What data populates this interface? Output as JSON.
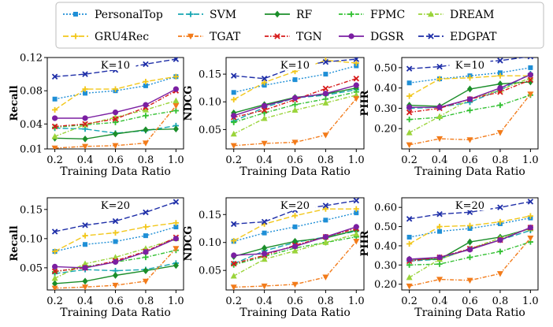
{
  "legend": [
    {
      "name": "PersonalTop",
      "color": "#1f8fd6",
      "dash": "2,2",
      "marker": "square"
    },
    {
      "name": "SVM",
      "color": "#17a6b3",
      "dash": "7,3",
      "marker": "plus"
    },
    {
      "name": "RF",
      "color": "#1b8e2a",
      "dash": "",
      "marker": "diamond"
    },
    {
      "name": "FPMC",
      "color": "#32c032",
      "dash": "5,2,1.5,2",
      "marker": "plus"
    },
    {
      "name": "DREAM",
      "color": "#9ad43a",
      "dash": "5,2,1.5,2",
      "marker": "triangle-up"
    },
    {
      "name": "GRU4Rec",
      "color": "#f2c71b",
      "dash": "7,3",
      "marker": "plus"
    },
    {
      "name": "TGAT",
      "color": "#f27b1a",
      "dash": "5,2,1.5,2",
      "marker": "triangle-down"
    },
    {
      "name": "TGN",
      "color": "#d61a1a",
      "dash": "5,2,1.5,2",
      "marker": "x"
    },
    {
      "name": "DGSR",
      "color": "#7b1fa2",
      "dash": "",
      "marker": "circle"
    },
    {
      "name": "EDGPAT",
      "color": "#1f2fa8",
      "dash": "7,3",
      "marker": "x"
    }
  ],
  "chart_data": [
    {
      "type": "line",
      "title": "K=10",
      "xlabel": "Training Data Ratio",
      "ylabel": "Recall",
      "x": [
        0.2,
        0.4,
        0.6,
        0.8,
        1.0
      ],
      "ylim": [
        0.01,
        0.12
      ],
      "yticks": [
        "0.01",
        "0.04",
        "0.08",
        "0.12"
      ],
      "series": [
        {
          "name": "PersonalTop",
          "values": [
            0.07,
            0.077,
            0.08,
            0.086,
            0.097
          ]
        },
        {
          "name": "SVM",
          "values": [
            0.035,
            0.034,
            0.029,
            0.032,
            0.038
          ]
        },
        {
          "name": "RF",
          "values": [
            0.023,
            0.022,
            0.028,
            0.033,
            0.034
          ]
        },
        {
          "name": "FPMC",
          "values": [
            0.036,
            0.039,
            0.042,
            0.05,
            0.056
          ]
        },
        {
          "name": "DREAM",
          "values": [
            0.025,
            0.039,
            0.048,
            0.057,
            0.068
          ]
        },
        {
          "name": "GRU4Rec",
          "values": [
            0.057,
            0.082,
            0.082,
            0.091,
            0.097
          ]
        },
        {
          "name": "TGAT",
          "values": [
            0.011,
            0.013,
            0.014,
            0.017,
            0.062
          ]
        },
        {
          "name": "TGN",
          "values": [
            0.037,
            0.04,
            0.046,
            0.06,
            0.08
          ]
        },
        {
          "name": "DGSR",
          "values": [
            0.047,
            0.047,
            0.054,
            0.063,
            0.082
          ]
        },
        {
          "name": "EDGPAT",
          "values": [
            0.097,
            0.1,
            0.105,
            0.112,
            0.118
          ]
        }
      ]
    },
    {
      "type": "line",
      "title": "K=10",
      "xlabel": "Training Data Ratio",
      "ylabel": "NDCG",
      "x": [
        0.2,
        0.4,
        0.6,
        0.8,
        1.0
      ],
      "ylim": [
        0.015,
        0.18
      ],
      "yticks": [
        "0.05",
        "0.10",
        "0.15"
      ],
      "series": [
        {
          "name": "PersonalTop",
          "values": [
            0.117,
            0.13,
            0.14,
            0.15,
            0.165
          ]
        },
        {
          "name": "SVM",
          "values": [
            0.065,
            0.09,
            0.107,
            0.112,
            0.122
          ]
        },
        {
          "name": "RF",
          "values": [
            0.08,
            0.095,
            0.108,
            0.114,
            0.125
          ]
        },
        {
          "name": "FPMC",
          "values": [
            0.063,
            0.08,
            0.095,
            0.105,
            0.118
          ]
        },
        {
          "name": "DREAM",
          "values": [
            0.042,
            0.07,
            0.085,
            0.098,
            0.112
          ]
        },
        {
          "name": "GRU4Rec",
          "values": [
            0.104,
            0.135,
            0.155,
            0.175,
            0.17
          ]
        },
        {
          "name": "TGAT",
          "values": [
            0.021,
            0.025,
            0.027,
            0.04,
            0.106
          ]
        },
        {
          "name": "TGN",
          "values": [
            0.072,
            0.085,
            0.104,
            0.124,
            0.142
          ]
        },
        {
          "name": "DGSR",
          "values": [
            0.075,
            0.093,
            0.107,
            0.115,
            0.13
          ]
        },
        {
          "name": "EDGPAT",
          "values": [
            0.147,
            0.142,
            0.163,
            0.172,
            0.177
          ]
        }
      ]
    },
    {
      "type": "line",
      "title": "K=10",
      "xlabel": "Training Data Ratio",
      "ylabel": "PHR",
      "x": [
        0.2,
        0.4,
        0.6,
        0.8,
        1.0
      ],
      "ylim": [
        0.1,
        0.55
      ],
      "yticks": [
        "0.20",
        "0.30",
        "0.40",
        "0.50"
      ],
      "series": [
        {
          "name": "PersonalTop",
          "values": [
            0.425,
            0.445,
            0.46,
            0.475,
            0.5
          ]
        },
        {
          "name": "SVM",
          "values": [
            0.3,
            0.305,
            0.33,
            0.39,
            0.47
          ]
        },
        {
          "name": "RF",
          "values": [
            0.315,
            0.31,
            0.395,
            0.42,
            0.43
          ]
        },
        {
          "name": "FPMC",
          "values": [
            0.245,
            0.255,
            0.29,
            0.315,
            0.365
          ]
        },
        {
          "name": "DREAM",
          "values": [
            0.18,
            0.26,
            0.345,
            0.39,
            0.45
          ]
        },
        {
          "name": "GRU4Rec",
          "values": [
            0.36,
            0.445,
            0.45,
            0.46,
            0.46
          ]
        },
        {
          "name": "TGAT",
          "values": [
            0.12,
            0.15,
            0.145,
            0.18,
            0.37
          ]
        },
        {
          "name": "TGN",
          "values": [
            0.28,
            0.3,
            0.345,
            0.38,
            0.44
          ]
        },
        {
          "name": "DGSR",
          "values": [
            0.305,
            0.305,
            0.345,
            0.4,
            0.465
          ]
        },
        {
          "name": "EDGPAT",
          "values": [
            0.495,
            0.505,
            0.525,
            0.535,
            0.555
          ]
        }
      ]
    },
    {
      "type": "line",
      "title": "K=20",
      "xlabel": "Training Data Ratio",
      "ylabel": "Recall",
      "x": [
        0.2,
        0.4,
        0.6,
        0.8,
        1.0
      ],
      "ylim": [
        0.012,
        0.17
      ],
      "yticks": [
        "0.05",
        "0.10",
        "0.15"
      ],
      "series": [
        {
          "name": "PersonalTop",
          "values": [
            0.078,
            0.09,
            0.095,
            0.105,
            0.12
          ]
        },
        {
          "name": "SVM",
          "values": [
            0.04,
            0.047,
            0.045,
            0.047,
            0.058
          ]
        },
        {
          "name": "RF",
          "values": [
            0.023,
            0.027,
            0.037,
            0.045,
            0.054
          ]
        },
        {
          "name": "FPMC",
          "values": [
            0.043,
            0.052,
            0.06,
            0.068,
            0.08
          ]
        },
        {
          "name": "DREAM",
          "values": [
            0.032,
            0.057,
            0.068,
            0.083,
            0.1
          ]
        },
        {
          "name": "GRU4Rec",
          "values": [
            0.078,
            0.105,
            0.11,
            0.12,
            0.127
          ]
        },
        {
          "name": "TGAT",
          "values": [
            0.015,
            0.017,
            0.02,
            0.027,
            0.083
          ]
        },
        {
          "name": "TGN",
          "values": [
            0.044,
            0.05,
            0.062,
            0.078,
            0.102
          ]
        },
        {
          "name": "DGSR",
          "values": [
            0.052,
            0.05,
            0.06,
            0.077,
            0.1
          ]
        },
        {
          "name": "EDGPAT",
          "values": [
            0.112,
            0.123,
            0.13,
            0.145,
            0.163
          ]
        }
      ]
    },
    {
      "type": "line",
      "title": "K=20",
      "xlabel": "Training Data Ratio",
      "ylabel": "NDCG",
      "x": [
        0.2,
        0.4,
        0.6,
        0.8,
        1.0
      ],
      "ylim": [
        0.015,
        0.18
      ],
      "yticks": [
        "0.05",
        "0.10",
        "0.15"
      ],
      "series": [
        {
          "name": "PersonalTop",
          "values": [
            0.102,
            0.117,
            0.128,
            0.14,
            0.153
          ]
        },
        {
          "name": "SVM",
          "values": [
            0.062,
            0.085,
            0.1,
            0.11,
            0.12
          ]
        },
        {
          "name": "RF",
          "values": [
            0.075,
            0.09,
            0.102,
            0.108,
            0.122
          ]
        },
        {
          "name": "FPMC",
          "values": [
            0.06,
            0.075,
            0.09,
            0.1,
            0.11
          ]
        },
        {
          "name": "DREAM",
          "values": [
            0.04,
            0.07,
            0.085,
            0.1,
            0.115
          ]
        },
        {
          "name": "GRU4Rec",
          "values": [
            0.103,
            0.133,
            0.148,
            0.16,
            0.16
          ]
        },
        {
          "name": "TGAT",
          "values": [
            0.02,
            0.022,
            0.025,
            0.038,
            0.102
          ]
        },
        {
          "name": "TGN",
          "values": [
            0.062,
            0.077,
            0.095,
            0.11,
            0.125
          ]
        },
        {
          "name": "DGSR",
          "values": [
            0.077,
            0.08,
            0.093,
            0.11,
            0.128
          ]
        },
        {
          "name": "EDGPAT",
          "values": [
            0.133,
            0.137,
            0.158,
            0.166,
            0.175
          ]
        }
      ]
    },
    {
      "type": "line",
      "title": "K=20",
      "xlabel": "Training Data Ratio",
      "ylabel": "PHR",
      "x": [
        0.2,
        0.4,
        0.6,
        0.8,
        1.0
      ],
      "ylim": [
        0.17,
        0.65
      ],
      "yticks": [
        "0.20",
        "0.30",
        "0.40",
        "0.50",
        "0.60"
      ],
      "series": [
        {
          "name": "PersonalTop",
          "values": [
            0.445,
            0.475,
            0.49,
            0.515,
            0.545
          ]
        },
        {
          "name": "SVM",
          "values": [
            0.32,
            0.33,
            0.385,
            0.43,
            0.48
          ]
        },
        {
          "name": "RF",
          "values": [
            0.33,
            0.33,
            0.42,
            0.445,
            0.49
          ]
        },
        {
          "name": "FPMC",
          "values": [
            0.3,
            0.305,
            0.34,
            0.37,
            0.42
          ]
        },
        {
          "name": "DREAM",
          "values": [
            0.235,
            0.33,
            0.385,
            0.44,
            0.49
          ]
        },
        {
          "name": "GRU4Rec",
          "values": [
            0.41,
            0.5,
            0.505,
            0.525,
            0.555
          ]
        },
        {
          "name": "TGAT",
          "values": [
            0.19,
            0.225,
            0.22,
            0.255,
            0.44
          ]
        },
        {
          "name": "TGN",
          "values": [
            0.32,
            0.34,
            0.385,
            0.43,
            0.495
          ]
        },
        {
          "name": "DGSR",
          "values": [
            0.33,
            0.34,
            0.38,
            0.43,
            0.495
          ]
        },
        {
          "name": "EDGPAT",
          "values": [
            0.54,
            0.565,
            0.575,
            0.6,
            0.63
          ]
        }
      ]
    }
  ]
}
